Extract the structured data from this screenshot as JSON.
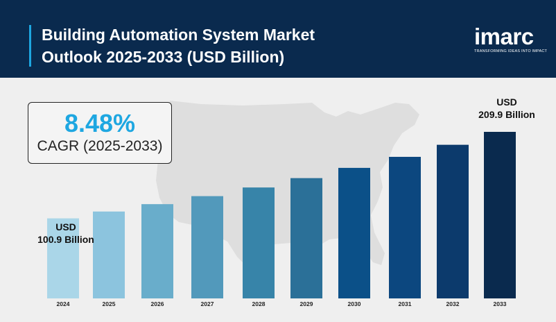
{
  "header": {
    "title_line1": "Building Automation System Market",
    "title_line2": "Outlook 2025-2033 (USD Billion)"
  },
  "logo": {
    "wordmark": "imarc",
    "tagline": "TRANSFORMING IDEAS INTO IMPACT"
  },
  "cagr": {
    "value": "8.48%",
    "label": "CAGR (2025-2033)"
  },
  "callouts": {
    "first_unit": "USD",
    "first_value": "100.9 Billion",
    "last_unit": "USD",
    "last_value": "209.9 Billion"
  },
  "chart_data": {
    "type": "bar",
    "title": "Building Automation System Market Outlook 2025-2033 (USD Billion)",
    "xlabel": "",
    "ylabel": "",
    "categories": [
      "2024",
      "2025",
      "2026",
      "2027",
      "2028",
      "2029",
      "2030",
      "2031",
      "2032",
      "2033"
    ],
    "values": [
      100.9,
      109.5,
      118.8,
      128.9,
      139.8,
      151.6,
      164.5,
      178.4,
      193.6,
      209.9
    ],
    "grid": false,
    "legend": "none",
    "colors": [
      "#aad6e8",
      "#8cc4de",
      "#69adcb",
      "#5299bb",
      "#3784a9",
      "#2b7098",
      "#0b5088",
      "#0c477f",
      "#0c3a6c",
      "#0a2a4e"
    ]
  },
  "colors": {
    "header_bg": "#0a2a4e",
    "accent": "#1ea7e1",
    "background": "#efefef",
    "map": "#dedede"
  }
}
